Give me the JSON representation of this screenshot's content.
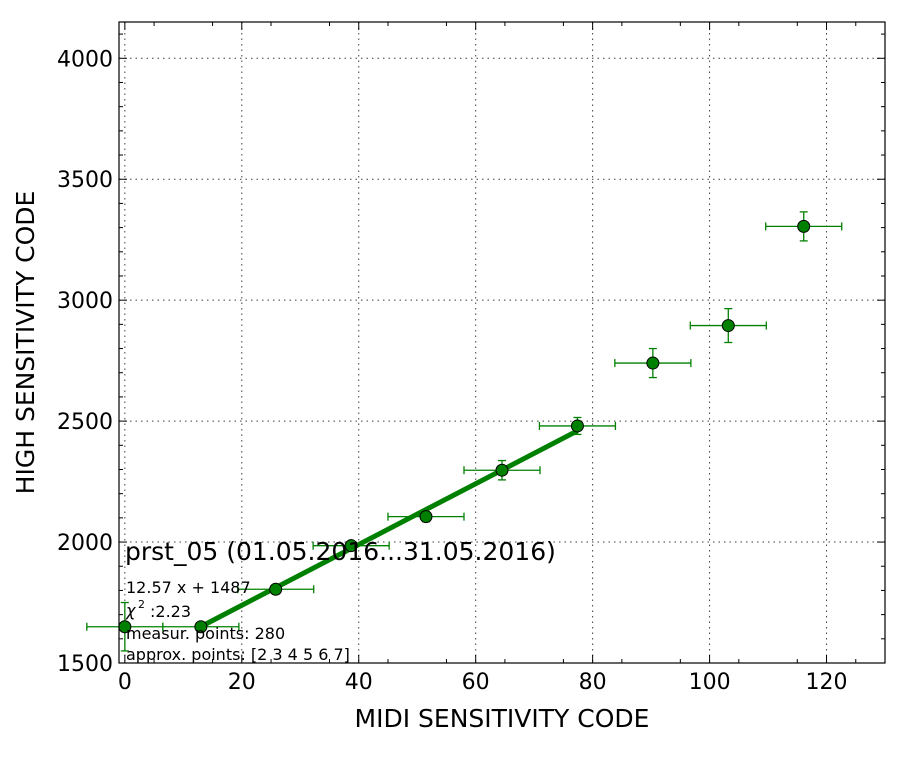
{
  "chart_data": {
    "type": "scatter",
    "title": "",
    "xlabel": "MIDI SENSITIVITY CODE",
    "ylabel": "HIGH SENSITIVITY CODE",
    "xlim": [
      -1,
      130
    ],
    "ylim": [
      1500,
      4150
    ],
    "x_ticks": [
      0,
      20,
      40,
      60,
      80,
      100,
      120
    ],
    "y_ticks": [
      1500,
      2000,
      2500,
      3000,
      3500,
      4000
    ],
    "x_ticks_labels": [
      "0",
      "20",
      "40",
      "60",
      "80",
      "100",
      "120"
    ],
    "y_ticks_labels": [
      "1500",
      "2000",
      "2500",
      "3000",
      "3500",
      "4000"
    ],
    "grid": true,
    "marker_color": "#008000",
    "series": [
      {
        "points": [
          {
            "x": 0,
            "y": 1650,
            "xerr": 6.5,
            "yerr": 100
          },
          {
            "x": 13,
            "y": 1650,
            "xerr": 6.5,
            "yerr": 10
          },
          {
            "x": 25.8,
            "y": 1805,
            "xerr": 6.5,
            "yerr": 12
          },
          {
            "x": 38.7,
            "y": 1985,
            "xerr": 6.5,
            "yerr": 12
          },
          {
            "x": 51.5,
            "y": 2105,
            "xerr": 6.5,
            "yerr": 20
          },
          {
            "x": 64.5,
            "y": 2297,
            "xerr": 6.5,
            "yerr": 40
          },
          {
            "x": 77.4,
            "y": 2480,
            "xerr": 6.5,
            "yerr": 35
          },
          {
            "x": 90.3,
            "y": 2740,
            "xerr": 6.5,
            "yerr": 60
          },
          {
            "x": 103.2,
            "y": 2895,
            "xerr": 6.5,
            "yerr": 70
          },
          {
            "x": 116.1,
            "y": 3305,
            "xerr": 6.5,
            "yerr": 60
          }
        ]
      }
    ],
    "fit": {
      "slope": 12.57,
      "intercept": 1487,
      "x_range": [
        13,
        77.4
      ],
      "color": "#008000"
    },
    "annotations": {
      "station_title": "prst_05 (01.05.2016...31.05.2016)",
      "fit_equation": "12.57 x + 1487",
      "chi2": ":2.23",
      "measur_points": "measur. points: 280",
      "approx_points": "approx. points: [2 3 4 5 6 7]"
    }
  }
}
